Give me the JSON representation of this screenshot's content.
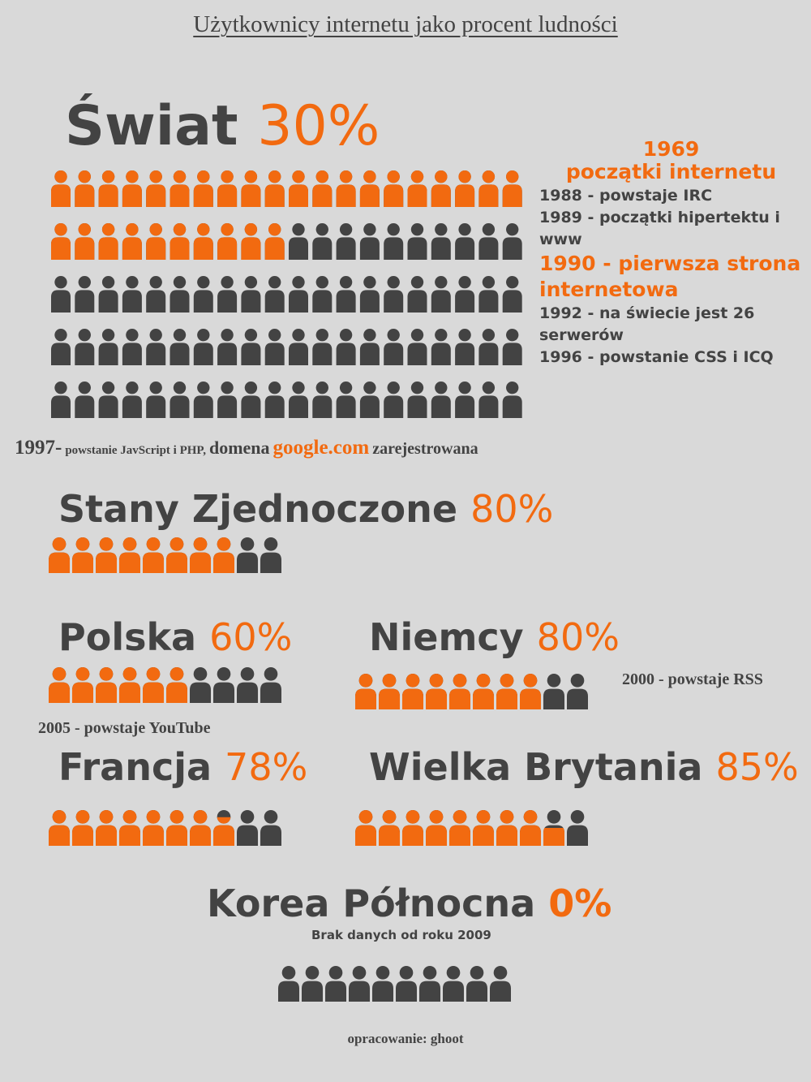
{
  "header": {
    "title": "Użytkownicy internetu jako procent ludności"
  },
  "colors": {
    "filled": "#f26a10",
    "empty": "#434343"
  },
  "countries": [
    {
      "name": "Świat",
      "value": 30,
      "value_label": "30%"
    },
    {
      "name": "Stany Zjednoczone",
      "value": 80,
      "value_label": "80%"
    },
    {
      "name": "Polska",
      "value": 60,
      "value_label": "60%"
    },
    {
      "name": "Niemcy",
      "value": 80,
      "value_label": "80%"
    },
    {
      "name": "Francja",
      "value": 78,
      "value_label": "78%"
    },
    {
      "name": "Wielka Brytania",
      "value": 85,
      "value_label": "85%"
    },
    {
      "name": "Korea Północna",
      "value": 0,
      "value_label": "0%"
    }
  ],
  "timeline": {
    "year": "1969",
    "headline": "początki internetu",
    "events": [
      "1988 - powstaje IRC",
      "1989 - początki hipertektu i www",
      "1990 - pierwsza strona internetowa",
      "1992 - na świecie jest 26 serwerów",
      "1996 - powstanie CSS i ICQ"
    ]
  },
  "note_1997": {
    "year": "1997-",
    "text": "powstanie JavScript i PHP,",
    "text2": "domena",
    "domain": "google.com",
    "text3": "zarejestrowana"
  },
  "notes": {
    "rss": "2000 - powstaje RSS",
    "youtube": "2005 - powstaje YouTube",
    "korea": "Brak danych od roku 2009"
  },
  "footer": "opracowanie: ghoot"
}
